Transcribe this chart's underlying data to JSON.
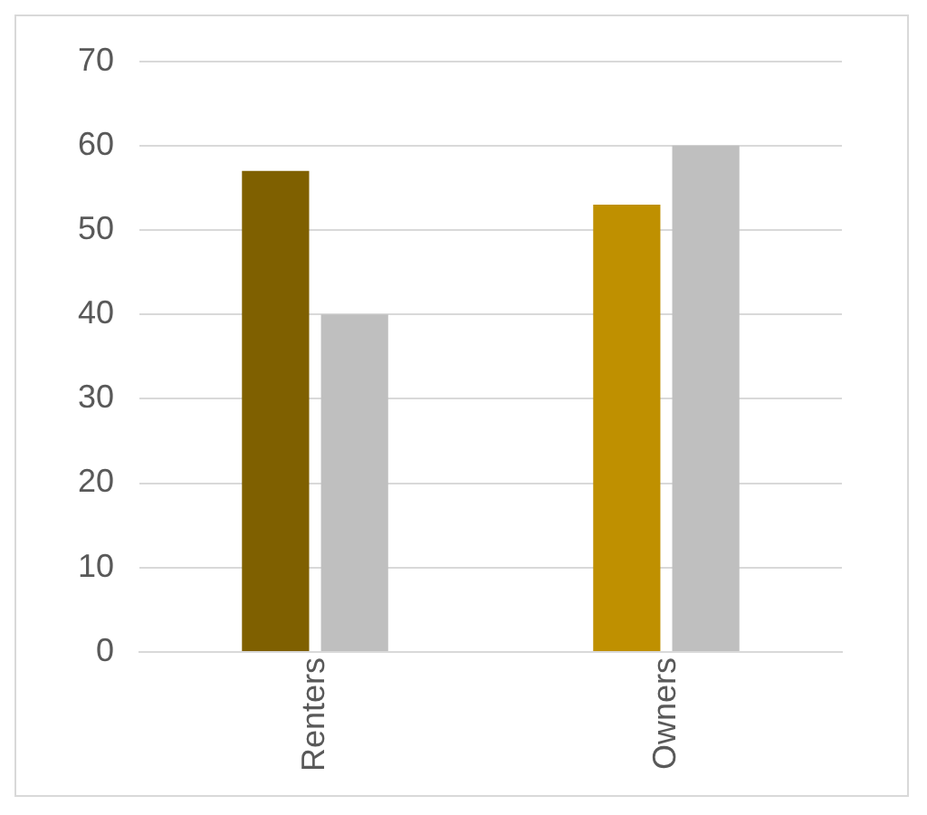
{
  "chart_data": {
    "type": "bar",
    "categories": [
      "Renters",
      "Owners"
    ],
    "series": [
      {
        "colors": [
          "#7f6000",
          "#bf9000"
        ],
        "values": [
          57,
          53
        ]
      },
      {
        "color": "#bfbfbf",
        "values": [
          40,
          60
        ]
      }
    ],
    "ylim": [
      0,
      70
    ],
    "yticks": [
      0,
      10,
      20,
      30,
      40,
      50,
      60,
      70
    ],
    "grid": "y",
    "legend": false
  }
}
